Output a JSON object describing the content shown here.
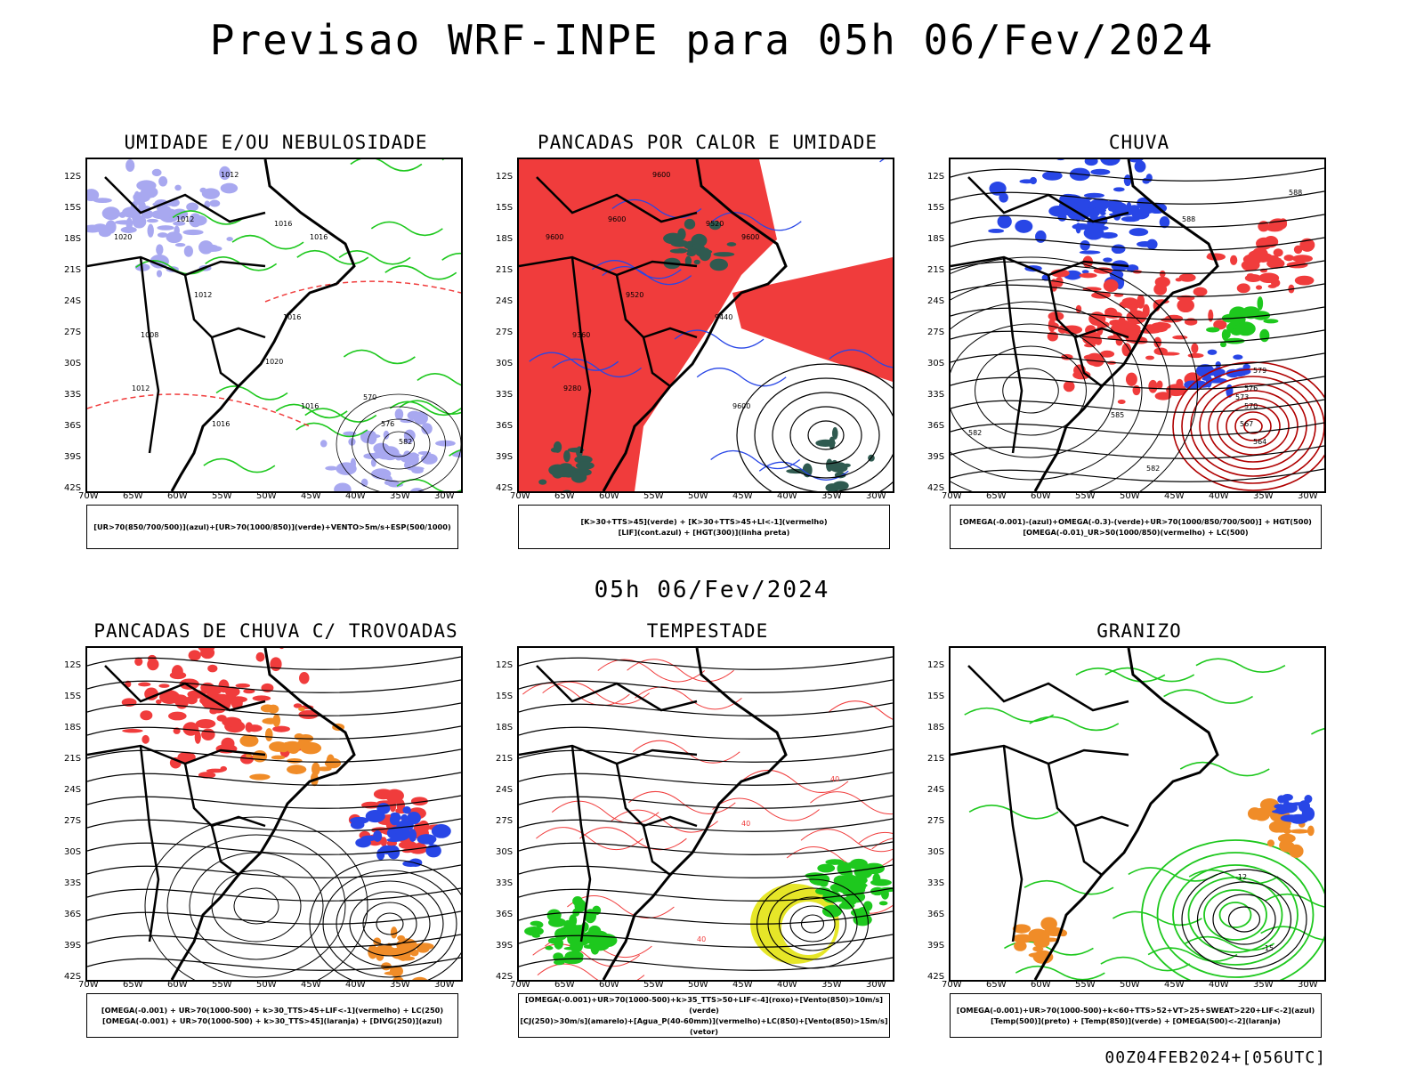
{
  "header": {
    "title": "Previsao WRF-INPE  para 05h 06/Fev/2024",
    "mid_date": "05h 06/Fev/2024",
    "footer": "00Z04FEB2024+[056UTC]"
  },
  "axes": {
    "lat_labels": [
      "12S",
      "15S",
      "18S",
      "21S",
      "24S",
      "27S",
      "30S",
      "33S",
      "36S",
      "39S",
      "42S"
    ],
    "lon_labels": [
      "70W",
      "65W",
      "60W",
      "55W",
      "50W",
      "45W",
      "40W",
      "35W",
      "30W"
    ]
  },
  "panels": [
    {
      "title": "UMIDADE E/OU NEBULOSIDADE",
      "legend": [
        "[UR>70(850/700/500)](azul)+[UR>70(1000/850)](verde)+VENTO>5m/s+ESP(500/1000)"
      ],
      "labels": [
        "1012",
        "1012",
        "1016",
        "1016",
        "1020",
        "1012",
        "1016",
        "1008",
        "1012",
        "1016",
        "570",
        "576",
        "582",
        "1020",
        "1016"
      ]
    },
    {
      "title": "PANCADAS POR CALOR E UMIDADE",
      "legend": [
        "[K>30+TTS>45](verde) + [K>30+TTS>45+LI<-1](vermelho)",
        "[LIF](cont.azul) + [HGT(300)](linha preta)"
      ],
      "labels": [
        "9600",
        "9600",
        "9520",
        "9600",
        "9600",
        "9520",
        "9440",
        "9360",
        "9280",
        "9600"
      ]
    },
    {
      "title": "CHUVA",
      "legend": [
        "[OMEGA(-0.001)-(azul)+OMEGA(-0.3)-(verde)+UR>70(1000/850/700/500)] + HGT(500)",
        "[OMEGA(-0.01)_UR>50(1000/850)(vermelho) + LC(500)"
      ],
      "labels": [
        "588",
        "588",
        "585",
        "582",
        "579",
        "576",
        "573",
        "570",
        "567",
        "564",
        "582"
      ]
    },
    {
      "title": "PANCADAS DE CHUVA C/ TROVOADAS",
      "legend": [
        "[OMEGA(-0.001) + UR>70(1000-500) + k>30_TTS>45+LIF<-1](vermelho) + LC(250)",
        "[OMEGA(-0.001) + UR>70(1000-500) + k>30_TTS>45](laranja) + [DIVG(250)](azul)"
      ],
      "labels": []
    },
    {
      "title": "TEMPESTADE",
      "legend": [
        "[OMEGA(-0.001)+UR>70(1000-500)+k>35_TTS>50+LIF<-4](roxo)+[Vento(850)>10m/s](verde)",
        "[CJ(250)>30m/s](amarelo)+[Agua_P(40-60mm)](vermelho)+LC(850)+[Vento(850)>15m/s](vetor)"
      ],
      "labels": [
        "40",
        "40",
        "40"
      ]
    },
    {
      "title": "GRANIZO",
      "legend": [
        "[OMEGA(-0.001)+UR>70(1000-500)+k<60+TTS>52+VT>25+SWEAT>220+LIF<-2](azul)",
        "[Temp(500)](preto) + [Temp(850)](verde) + [OMEGA(500)<-2](laranja)"
      ],
      "labels": [
        "-12",
        "-15"
      ]
    }
  ],
  "colors": {
    "red": "#f03c3c",
    "green": "#1ec81e",
    "blue": "#2846e6",
    "lavender": "#a8a8f0",
    "darkgreen": "#2f5a50",
    "orange": "#f08c28",
    "yellow": "#e6e628",
    "purple": "#b428c8"
  }
}
